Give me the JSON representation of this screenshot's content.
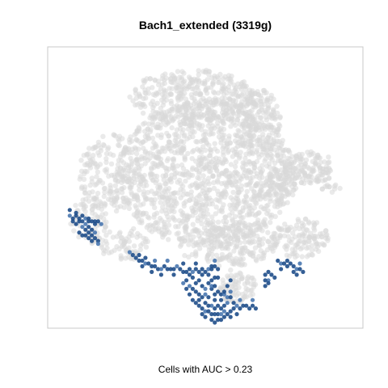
{
  "chart_data": {
    "type": "scatter",
    "title": "Bach1_extended (3319g)",
    "xlabel": "Cells with AUC > 0.23",
    "ylabel": "",
    "xlim": [
      0,
      100
    ],
    "ylim": [
      0,
      100
    ],
    "axes_visible": false,
    "grid": false,
    "legend": "none",
    "colors": {
      "background_cells": "#d9d9d9",
      "active_cells": "#1f4e89",
      "active_cells_light": "#4a78b0",
      "frame": "#c8c8c8"
    },
    "series": [
      {
        "role": "background",
        "clusters": [
          {
            "cx": 50,
            "cy": 55,
            "rx": 28,
            "ry": 26,
            "n": 1300
          },
          {
            "cx": 46,
            "cy": 82,
            "rx": 20,
            "ry": 10,
            "n": 380
          },
          {
            "cx": 67,
            "cy": 73,
            "rx": 7,
            "ry": 12,
            "n": 180
          },
          {
            "cx": 20,
            "cy": 55,
            "rx": 10,
            "ry": 14,
            "n": 180
          },
          {
            "cx": 13,
            "cy": 38,
            "rx": 6,
            "ry": 8,
            "n": 70
          },
          {
            "cx": 74,
            "cy": 51,
            "rx": 5,
            "ry": 7,
            "n": 80
          },
          {
            "cx": 83,
            "cy": 57,
            "rx": 8,
            "ry": 6,
            "n": 130
          },
          {
            "cx": 90,
            "cy": 50,
            "rx": 3,
            "ry": 2,
            "n": 12
          },
          {
            "cx": 80,
            "cy": 32,
            "rx": 9,
            "ry": 7,
            "n": 130
          },
          {
            "cx": 57,
            "cy": 30,
            "rx": 16,
            "ry": 8,
            "n": 220
          },
          {
            "cx": 60,
            "cy": 15,
            "rx": 6,
            "ry": 6,
            "n": 80
          },
          {
            "cx": 24,
            "cy": 30,
            "rx": 8,
            "ry": 6,
            "n": 70
          }
        ]
      },
      {
        "role": "active",
        "points": [
          [
            7,
            40
          ],
          [
            8,
            39
          ],
          [
            9,
            40
          ],
          [
            10,
            39
          ],
          [
            11,
            38
          ],
          [
            12,
            39
          ],
          [
            13,
            38
          ],
          [
            14,
            38
          ],
          [
            15,
            38
          ],
          [
            16,
            38
          ],
          [
            17,
            37
          ],
          [
            8,
            38
          ],
          [
            9,
            37
          ],
          [
            10,
            38
          ],
          [
            11,
            40
          ],
          [
            12,
            37
          ],
          [
            13,
            39
          ],
          [
            7,
            42
          ],
          [
            9,
            41
          ],
          [
            15,
            37
          ],
          [
            11,
            36
          ],
          [
            12,
            35
          ],
          [
            13,
            34
          ],
          [
            14,
            33
          ],
          [
            14,
            35
          ],
          [
            15,
            34
          ],
          [
            13,
            32
          ],
          [
            15,
            32
          ],
          [
            16,
            31
          ],
          [
            12,
            33
          ],
          [
            16,
            30
          ],
          [
            14,
            31
          ],
          [
            10,
            34
          ],
          [
            11,
            33
          ],
          [
            13,
            36
          ],
          [
            26,
            27
          ],
          [
            27,
            26
          ],
          [
            28,
            25
          ],
          [
            29,
            24
          ],
          [
            30,
            24
          ],
          [
            31,
            23
          ],
          [
            32,
            23
          ],
          [
            33,
            22
          ],
          [
            34,
            22
          ],
          [
            35,
            21
          ],
          [
            36,
            21
          ],
          [
            37,
            22
          ],
          [
            38,
            21
          ],
          [
            39,
            21
          ],
          [
            40,
            21
          ],
          [
            41,
            22
          ],
          [
            42,
            21
          ],
          [
            43,
            20
          ],
          [
            44,
            20
          ],
          [
            45,
            21
          ],
          [
            46,
            20
          ],
          [
            47,
            21
          ],
          [
            48,
            20
          ],
          [
            49,
            21
          ],
          [
            50,
            20
          ],
          [
            51,
            21
          ],
          [
            52,
            22
          ],
          [
            30,
            22
          ],
          [
            33,
            20
          ],
          [
            36,
            19
          ],
          [
            34,
            24
          ],
          [
            40,
            19
          ],
          [
            43,
            23
          ],
          [
            47,
            23
          ],
          [
            29,
            26
          ],
          [
            38,
            24
          ],
          [
            45,
            19
          ],
          [
            31,
            25
          ],
          [
            49,
            19
          ],
          [
            44,
            17
          ],
          [
            45,
            15
          ],
          [
            46,
            14
          ],
          [
            47,
            16
          ],
          [
            48,
            17
          ],
          [
            49,
            15
          ],
          [
            50,
            14
          ],
          [
            47,
            13
          ],
          [
            45,
            12
          ],
          [
            44,
            14
          ],
          [
            48,
            12
          ],
          [
            50,
            12
          ],
          [
            51,
            16
          ],
          [
            46,
            18
          ],
          [
            52,
            14
          ],
          [
            49,
            11
          ],
          [
            43,
            16
          ],
          [
            46,
            10
          ],
          [
            47,
            9
          ],
          [
            48,
            8
          ],
          [
            49,
            7
          ],
          [
            50,
            6
          ],
          [
            51,
            6
          ],
          [
            52,
            5
          ],
          [
            53,
            5
          ],
          [
            54,
            5
          ],
          [
            55,
            5
          ],
          [
            56,
            4
          ],
          [
            57,
            5
          ],
          [
            58,
            6
          ],
          [
            59,
            7
          ],
          [
            60,
            8
          ],
          [
            61,
            7
          ],
          [
            62,
            8
          ],
          [
            48,
            10
          ],
          [
            50,
            9
          ],
          [
            52,
            8
          ],
          [
            54,
            8
          ],
          [
            56,
            8
          ],
          [
            53,
            10
          ],
          [
            55,
            10
          ],
          [
            57,
            9
          ],
          [
            59,
            9
          ],
          [
            51,
            11
          ],
          [
            53,
            12
          ],
          [
            55,
            12
          ],
          [
            57,
            11
          ],
          [
            52,
            3
          ],
          [
            54,
            3
          ],
          [
            53,
            2
          ],
          [
            55,
            3
          ],
          [
            56,
            6
          ],
          [
            50,
            4
          ],
          [
            58,
            4
          ],
          [
            49,
            5
          ],
          [
            60,
            5
          ],
          [
            61,
            10
          ],
          [
            51,
            8
          ],
          [
            55,
            7
          ],
          [
            53,
            7
          ],
          [
            58,
            11
          ],
          [
            56,
            12
          ],
          [
            54,
            13
          ],
          [
            52,
            21
          ],
          [
            53,
            22
          ],
          [
            54,
            21
          ],
          [
            53,
            24
          ],
          [
            53,
            18
          ],
          [
            52,
            17
          ],
          [
            54,
            18
          ],
          [
            51,
            19
          ],
          [
            52,
            15
          ],
          [
            53,
            15
          ],
          [
            58,
            17
          ],
          [
            57,
            15
          ],
          [
            56,
            13
          ],
          [
            58,
            13
          ],
          [
            63,
            8
          ],
          [
            64,
            7
          ],
          [
            65,
            8
          ],
          [
            66,
            7
          ],
          [
            65,
            10
          ],
          [
            70,
            20
          ],
          [
            71,
            19
          ],
          [
            72,
            18
          ],
          [
            69,
            19
          ],
          [
            70,
            17
          ],
          [
            69,
            15
          ],
          [
            70,
            16
          ],
          [
            69,
            17
          ],
          [
            73,
            24
          ],
          [
            74,
            23
          ],
          [
            75,
            23
          ],
          [
            76,
            22
          ],
          [
            77,
            23
          ],
          [
            78,
            22
          ],
          [
            79,
            21
          ],
          [
            80,
            21
          ],
          [
            81,
            20
          ],
          [
            76,
            24
          ],
          [
            78,
            20
          ],
          [
            80,
            23
          ],
          [
            74,
            21
          ],
          [
            79,
            19
          ]
        ]
      }
    ]
  }
}
